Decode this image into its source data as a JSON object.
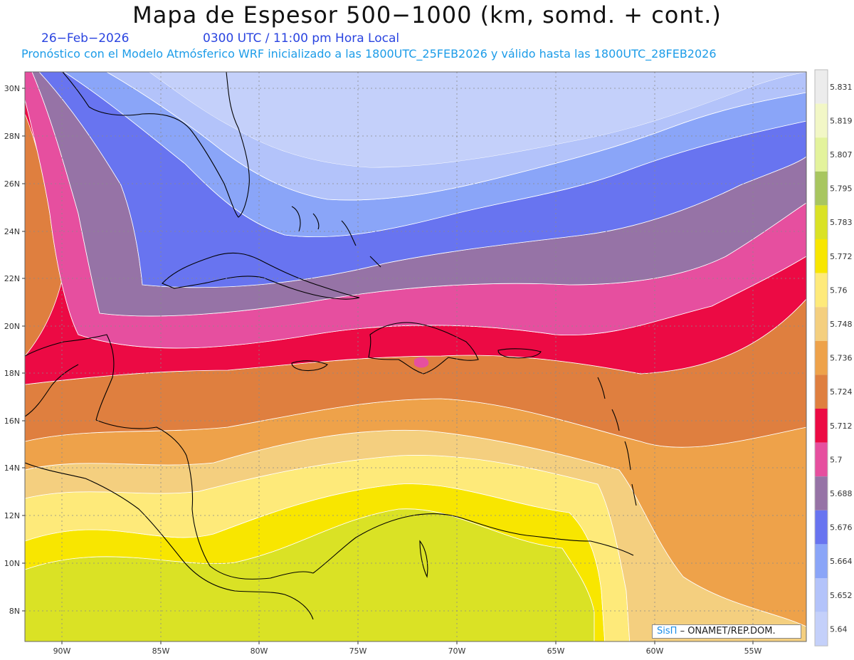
{
  "header": {
    "title": "Mapa de Espesor 500−1000 (km, somd. + cont.)",
    "date": "26−Feb−2026",
    "time": "0300 UTC / 11:00 pm Hora Local",
    "forecast": "Pronóstico con el Modelo Atmósferico WRF inicializado a las 1800UTC_25FEB2026 y válido hasta las  1800UTC_28FEB2026"
  },
  "map": {
    "lat_labels": [
      "30N",
      "28N",
      "26N",
      "24N",
      "22N",
      "20N",
      "18N",
      "16N",
      "14N",
      "12N",
      "10N",
      "8N"
    ],
    "lon_labels": [
      "90W",
      "85W",
      "80W",
      "75W",
      "70W",
      "65W",
      "60W",
      "55W"
    ]
  },
  "colorbar": {
    "levels": [
      "5.831",
      "5.819",
      "5.807",
      "5.795",
      "5.783",
      "5.772",
      "5.76",
      "5.748",
      "5.736",
      "5.724",
      "5.712",
      "5.7",
      "5.688",
      "5.676",
      "5.664",
      "5.652",
      "5.64"
    ],
    "colors": [
      "#ececec",
      "#f2f7c6",
      "#e3f39c",
      "#a8c65f",
      "#dae225",
      "#f8e600",
      "#feea7a",
      "#f4cf7f",
      "#eea24a",
      "#df7f3f",
      "#ec0a44",
      "#e64f9f",
      "#9673a6",
      "#6874f0",
      "#8aa5f8",
      "#b3c3fa",
      "#c4d0fa"
    ]
  },
  "credit": {
    "brand": "SisΠ",
    "text": "– ONAMET/REP.DOM."
  }
}
